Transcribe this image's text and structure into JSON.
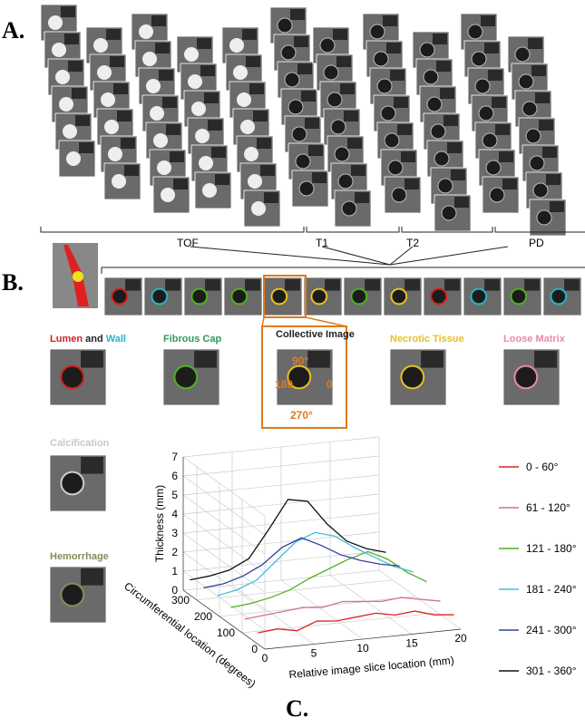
{
  "panel_labels": [
    "A.",
    "B.",
    "C."
  ],
  "sequence_labels": [
    "TOF",
    "T1",
    "T2",
    "PD"
  ],
  "components": {
    "lumen_wall": [
      {
        "text": "Lumen",
        "color": "#d42020"
      },
      {
        "text": "and",
        "color": "#222222"
      },
      {
        "text": "Wall",
        "color": "#25b5c8"
      }
    ],
    "others": [
      {
        "text": "Fibrous Cap",
        "color": "#2e9a5a"
      },
      {
        "text": "Collective Image",
        "color": "#222222"
      },
      {
        "text": "Necrotic Tissue",
        "color": "#e8c020"
      },
      {
        "text": "Loose Matrix",
        "color": "#e78aa8"
      },
      {
        "text": "Calcification",
        "color": "#c8c8c8"
      },
      {
        "text": "Hemorrhage",
        "color": "#8a8a5a"
      }
    ]
  },
  "angle_labels": [
    "90°",
    "180",
    "0",
    "270°"
  ],
  "chart_data": {
    "type": "line3d",
    "xlabel": "Relative image slice location (mm)",
    "ylabel": "Circumferential location (degrees)",
    "zlabel": "Thickness (mm)",
    "xlim": [
      0,
      20
    ],
    "xticks": [
      0,
      5,
      10,
      15,
      20
    ],
    "ylim": [
      0,
      360
    ],
    "yticks": [
      0,
      100,
      200,
      300
    ],
    "zlim": [
      0,
      7
    ],
    "zticks": [
      0,
      1,
      2,
      3,
      4,
      5,
      6,
      7
    ],
    "grid": true,
    "legend": "right",
    "x": [
      0,
      2,
      4,
      6,
      8,
      10,
      12,
      14,
      16,
      18,
      20
    ],
    "series": [
      {
        "name": "0 - 60°",
        "color": "#e02020",
        "circumferential": 30,
        "values": [
          0.6,
          0.7,
          0.5,
          0.9,
          0.8,
          0.9,
          1.0,
          0.8,
          0.9,
          0.6,
          0.5
        ]
      },
      {
        "name": "61 - 120°",
        "color": "#d070a0",
        "circumferential": 90,
        "values": [
          0.8,
          0.9,
          1.0,
          1.1,
          1.0,
          1.2,
          1.1,
          1.0,
          1.1,
          0.9,
          0.7
        ]
      },
      {
        "name": "121 - 180°",
        "color": "#50b020",
        "circumferential": 150,
        "values": [
          0.9,
          1.0,
          1.2,
          1.5,
          2.0,
          2.4,
          2.8,
          3.1,
          2.6,
          1.8,
          1.2
        ]
      },
      {
        "name": "181 - 240°",
        "color": "#40c0d8",
        "circumferential": 210,
        "values": [
          1.0,
          1.2,
          1.6,
          2.5,
          3.4,
          3.8,
          3.5,
          2.8,
          2.2,
          1.6,
          1.2
        ]
      },
      {
        "name": "241 - 300°",
        "color": "#3040a0",
        "circumferential": 270,
        "values": [
          0.9,
          1.0,
          1.3,
          1.8,
          2.6,
          3.0,
          2.5,
          1.9,
          1.5,
          1.2,
          1.0
        ]
      },
      {
        "name": "301 - 360°",
        "color": "#111111",
        "circumferential": 330,
        "values": [
          0.8,
          0.9,
          1.1,
          1.6,
          3.0,
          4.5,
          4.3,
          3.0,
          2.0,
          1.5,
          1.2
        ]
      }
    ]
  }
}
